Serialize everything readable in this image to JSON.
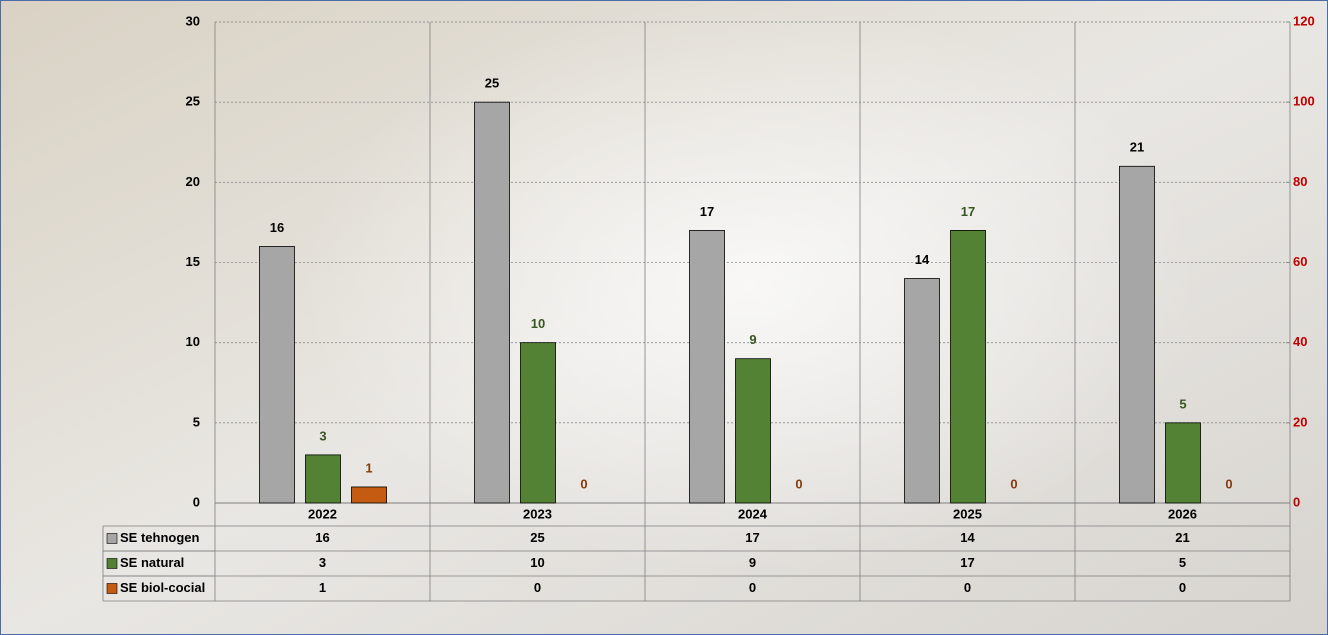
{
  "chart_data": {
    "type": "bar",
    "categories": [
      "2022",
      "2023",
      "2024",
      "2025",
      "2026"
    ],
    "series": [
      {
        "name": "SE tehnogen",
        "color": "#a6a6a6",
        "label_color": "#000000",
        "values": [
          16,
          25,
          17,
          14,
          21
        ]
      },
      {
        "name": "SE natural",
        "color": "#548235",
        "label_color": "#385723",
        "values": [
          3,
          10,
          9,
          17,
          5
        ]
      },
      {
        "name": "SE biol-cocial",
        "color": "#c55a11",
        "label_color": "#843c0c",
        "values": [
          1,
          0,
          0,
          0,
          0
        ]
      }
    ],
    "ylim": [
      0,
      30
    ],
    "yticks": [
      0,
      5,
      10,
      15,
      20,
      25,
      30
    ],
    "y2lim": [
      0,
      120
    ],
    "y2ticks": [
      0,
      20,
      40,
      60,
      80,
      100,
      120
    ],
    "y2color": "#c00000",
    "grid": true,
    "data_table": true
  }
}
